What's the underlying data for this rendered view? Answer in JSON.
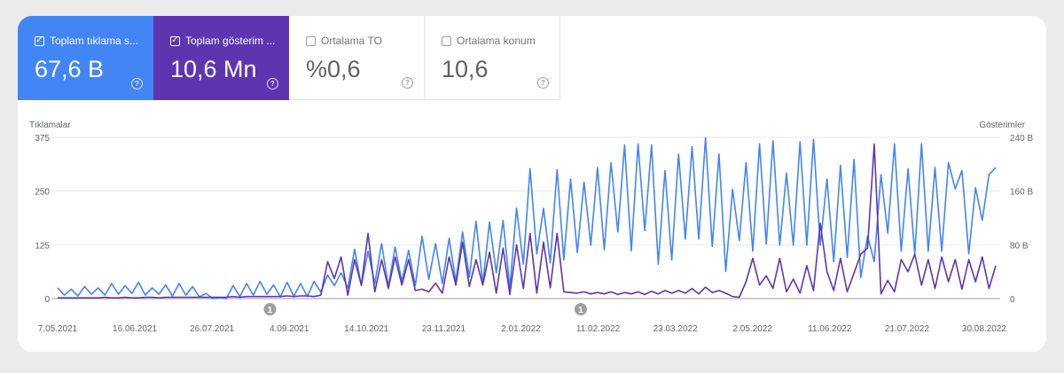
{
  "metrics": [
    {
      "label": "Toplam tıklama s...",
      "value": "67,6 B",
      "checked": true,
      "color": "#4285f4"
    },
    {
      "label": "Toplam gösterim ...",
      "value": "10,6 Mn",
      "checked": true,
      "color": "#5e35b1"
    },
    {
      "label": "Ortalama TO",
      "value": "%0,6",
      "checked": false
    },
    {
      "label": "Ortalama konum",
      "value": "10,6",
      "checked": false
    }
  ],
  "icons": {
    "checkbox_checked": "✓",
    "help": "?"
  },
  "chart_data": {
    "type": "line",
    "x_range": [
      "2021-05-07",
      "2022-09-05"
    ],
    "x_ticks": [
      {
        "date": "2021-05-07",
        "label": "7.05.2021"
      },
      {
        "date": "2021-06-16",
        "label": "16.06.2021"
      },
      {
        "date": "2021-07-26",
        "label": "26.07.2021"
      },
      {
        "date": "2021-09-04",
        "label": "4.09.2021"
      },
      {
        "date": "2021-10-14",
        "label": "14.10.2021"
      },
      {
        "date": "2021-11-23",
        "label": "23.11.2021"
      },
      {
        "date": "2022-01-02",
        "label": "2.01.2022"
      },
      {
        "date": "2022-02-11",
        "label": "11.02.2022"
      },
      {
        "date": "2022-03-23",
        "label": "23.03.2022"
      },
      {
        "date": "2022-05-02",
        "label": "2.05.2022"
      },
      {
        "date": "2022-06-11",
        "label": "11.06.2022"
      },
      {
        "date": "2022-07-21",
        "label": "21.07.2022"
      },
      {
        "date": "2022-08-30",
        "label": "30.08.2022"
      }
    ],
    "y_left": {
      "label": "Tıklamalar",
      "range": [
        0,
        375
      ],
      "ticks": [
        {
          "v": 0,
          "label": "0"
        },
        {
          "v": 125,
          "label": "125"
        },
        {
          "v": 250,
          "label": "250"
        },
        {
          "v": 375,
          "label": "375"
        }
      ]
    },
    "y_right": {
      "label": "Gösterimler",
      "range": [
        0,
        240
      ],
      "ticks": [
        {
          "v": 0,
          "label": "0"
        },
        {
          "v": 80,
          "label": "80 B"
        },
        {
          "v": 160,
          "label": "160 B"
        },
        {
          "v": 240,
          "label": "240 B"
        }
      ]
    },
    "grid": true,
    "annotations": [
      {
        "date": "2021-08-25",
        "label": "1"
      },
      {
        "date": "2022-02-02",
        "label": "1"
      }
    ],
    "series": [
      {
        "axis": "left",
        "color": "#4285f4",
        "values": [
          25,
          8,
          22,
          6,
          28,
          10,
          25,
          8,
          35,
          10,
          30,
          12,
          38,
          8,
          25,
          10,
          32,
          6,
          35,
          8,
          28,
          4,
          12,
          0,
          2,
          0,
          30,
          5,
          35,
          8,
          40,
          10,
          32,
          4,
          38,
          6,
          35,
          5,
          40,
          15,
          55,
          30,
          60,
          25,
          115,
          30,
          110,
          35,
          128,
          28,
          120,
          40,
          112,
          30,
          145,
          45,
          128,
          35,
          140,
          40,
          155,
          50,
          180,
          35,
          178,
          60,
          182,
          25,
          210,
          80,
          302,
          104,
          210,
          83,
          300,
          90,
          278,
          107,
          271,
          124,
          305,
          114,
          316,
          155,
          357,
          111,
          360,
          158,
          357,
          80,
          298,
          90,
          336,
          138,
          353,
          138,
          374,
          121,
          336,
          63,
          254,
          135,
          316,
          110,
          360,
          127,
          367,
          124,
          292,
          124,
          365,
          124,
          370,
          124,
          278,
          86,
          310,
          96,
          324,
          49,
          145,
          86,
          288,
          152,
          360,
          110,
          302,
          104,
          360,
          110,
          305,
          110,
          316,
          255,
          298,
          104,
          258,
          182,
          288,
          305
        ]
      },
      {
        "axis": "right",
        "color": "#5e35b1",
        "values": [
          1,
          1,
          1,
          1,
          1,
          1,
          1,
          2,
          1,
          1,
          2,
          1,
          1,
          2,
          2,
          1,
          2,
          2,
          2,
          2,
          2,
          2,
          2,
          2,
          2,
          2,
          3,
          2,
          3,
          3,
          3,
          3,
          3,
          3,
          4,
          3,
          4,
          4,
          3,
          5,
          55,
          30,
          62,
          5,
          58,
          20,
          97,
          10,
          58,
          15,
          62,
          20,
          58,
          12,
          14,
          10,
          23,
          8,
          62,
          20,
          84,
          18,
          58,
          20,
          69,
          8,
          75,
          6,
          80,
          15,
          97,
          8,
          84,
          16,
          97,
          10,
          9,
          8,
          10,
          7,
          9,
          7,
          10,
          6,
          9,
          7,
          10,
          6,
          11,
          7,
          12,
          8,
          12,
          8,
          15,
          7,
          17,
          9,
          12,
          8,
          3,
          2,
          25,
          60,
          20,
          34,
          15,
          60,
          10,
          29,
          8,
          49,
          12,
          112,
          40,
          12,
          60,
          10,
          38,
          66,
          75,
          230,
          7,
          27,
          10,
          58,
          40,
          66,
          20,
          58,
          15,
          62,
          25,
          58,
          14,
          58,
          25,
          62,
          15,
          49
        ]
      }
    ]
  }
}
